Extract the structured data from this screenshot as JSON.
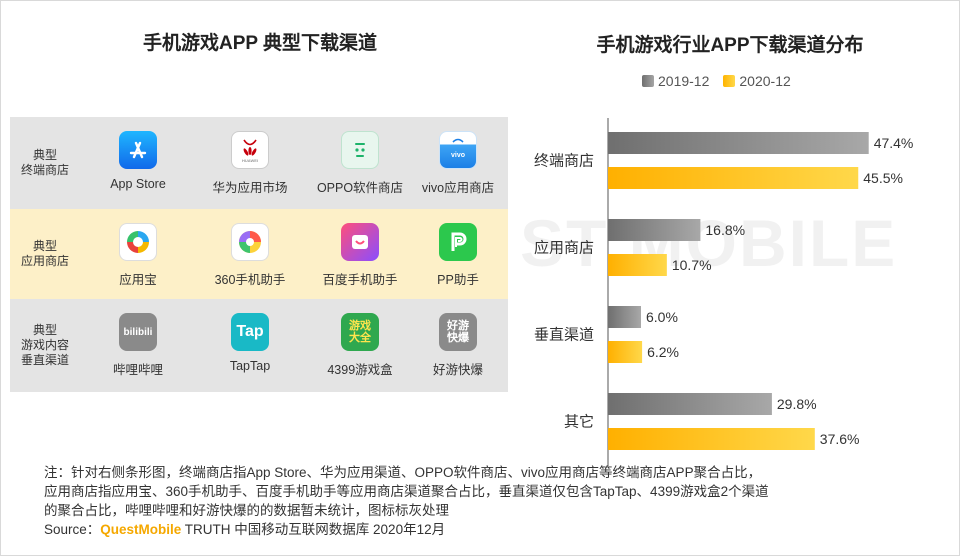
{
  "left_title": "手机游戏APP 典型下载渠道",
  "right_title": "手机游戏行业APP下载渠道分布",
  "watermark_text": "ST MOBILE",
  "table": {
    "rows": [
      {
        "label": "典型\n终端商店",
        "apps": [
          {
            "name": "App Store",
            "icon": "app-store-icon"
          },
          {
            "name": "华为应用市场",
            "icon": "huawei-appgallery-icon"
          },
          {
            "name": "OPPO软件商店",
            "icon": "oppo-store-icon"
          },
          {
            "name": "vivo应用商店",
            "icon": "vivo-store-icon"
          }
        ]
      },
      {
        "label": "典型\n应用商店",
        "apps": [
          {
            "name": "应用宝",
            "icon": "yingyongbao-icon"
          },
          {
            "name": "360手机助手",
            "icon": "360-assistant-icon"
          },
          {
            "name": "百度手机助手",
            "icon": "baidu-assistant-icon"
          },
          {
            "name": "PP助手",
            "icon": "pp-assistant-icon"
          }
        ]
      },
      {
        "label": "典型\n游戏内容\n垂直渠道",
        "apps": [
          {
            "name": "哔哩哔哩",
            "icon": "bilibili-icon",
            "icon_text": "bilibili"
          },
          {
            "name": "TapTap",
            "icon": "taptap-icon",
            "icon_text": "Tap"
          },
          {
            "name": "4399游戏盒",
            "icon": "4399-icon",
            "icon_text": "游戏\n大全"
          },
          {
            "name": "好游快爆",
            "icon": "haoyoukuaibao-icon",
            "icon_text": "好游\n快爆"
          }
        ]
      }
    ]
  },
  "chart_data": {
    "type": "bar",
    "orientation": "horizontal",
    "title": "手机游戏行业APP下载渠道分布",
    "categories": [
      "终端商店",
      "应用商店",
      "垂直渠道",
      "其它"
    ],
    "series": [
      {
        "name": "2019-12",
        "values": [
          47.4,
          16.8,
          6.0,
          29.8
        ],
        "labels": [
          "47.4%",
          "16.8%",
          "6.0%",
          "29.8%"
        ],
        "color": "#8c8c8c"
      },
      {
        "name": "2020-12",
        "values": [
          45.5,
          10.7,
          6.2,
          37.6
        ],
        "labels": [
          "45.5%",
          "10.7%",
          "6.2%",
          "37.6%"
        ],
        "color": "#ffc000"
      }
    ],
    "xlim": [
      0,
      50
    ],
    "legend_position": "top",
    "grid": false
  },
  "note": {
    "lines": [
      "注：针对右侧条形图，终端商店指App Store、华为应用渠道、OPPO软件商店、vivo应用商店等终端商店APP聚合占比，",
      "应用商店指应用宝、360手机助手、百度手机助手等应用商店渠道聚合占比，垂直渠道仅包含TapTap、4399游戏盒2个渠道",
      "的聚合占比，哔哩哔哩和好游快爆的的数据暂未统计，图标标灰处理"
    ],
    "source_prefix": "Source：",
    "source_brand": "QuestMobile",
    "source_suffix": " TRUTH 中国移动互联网数据库 2020年12月"
  }
}
